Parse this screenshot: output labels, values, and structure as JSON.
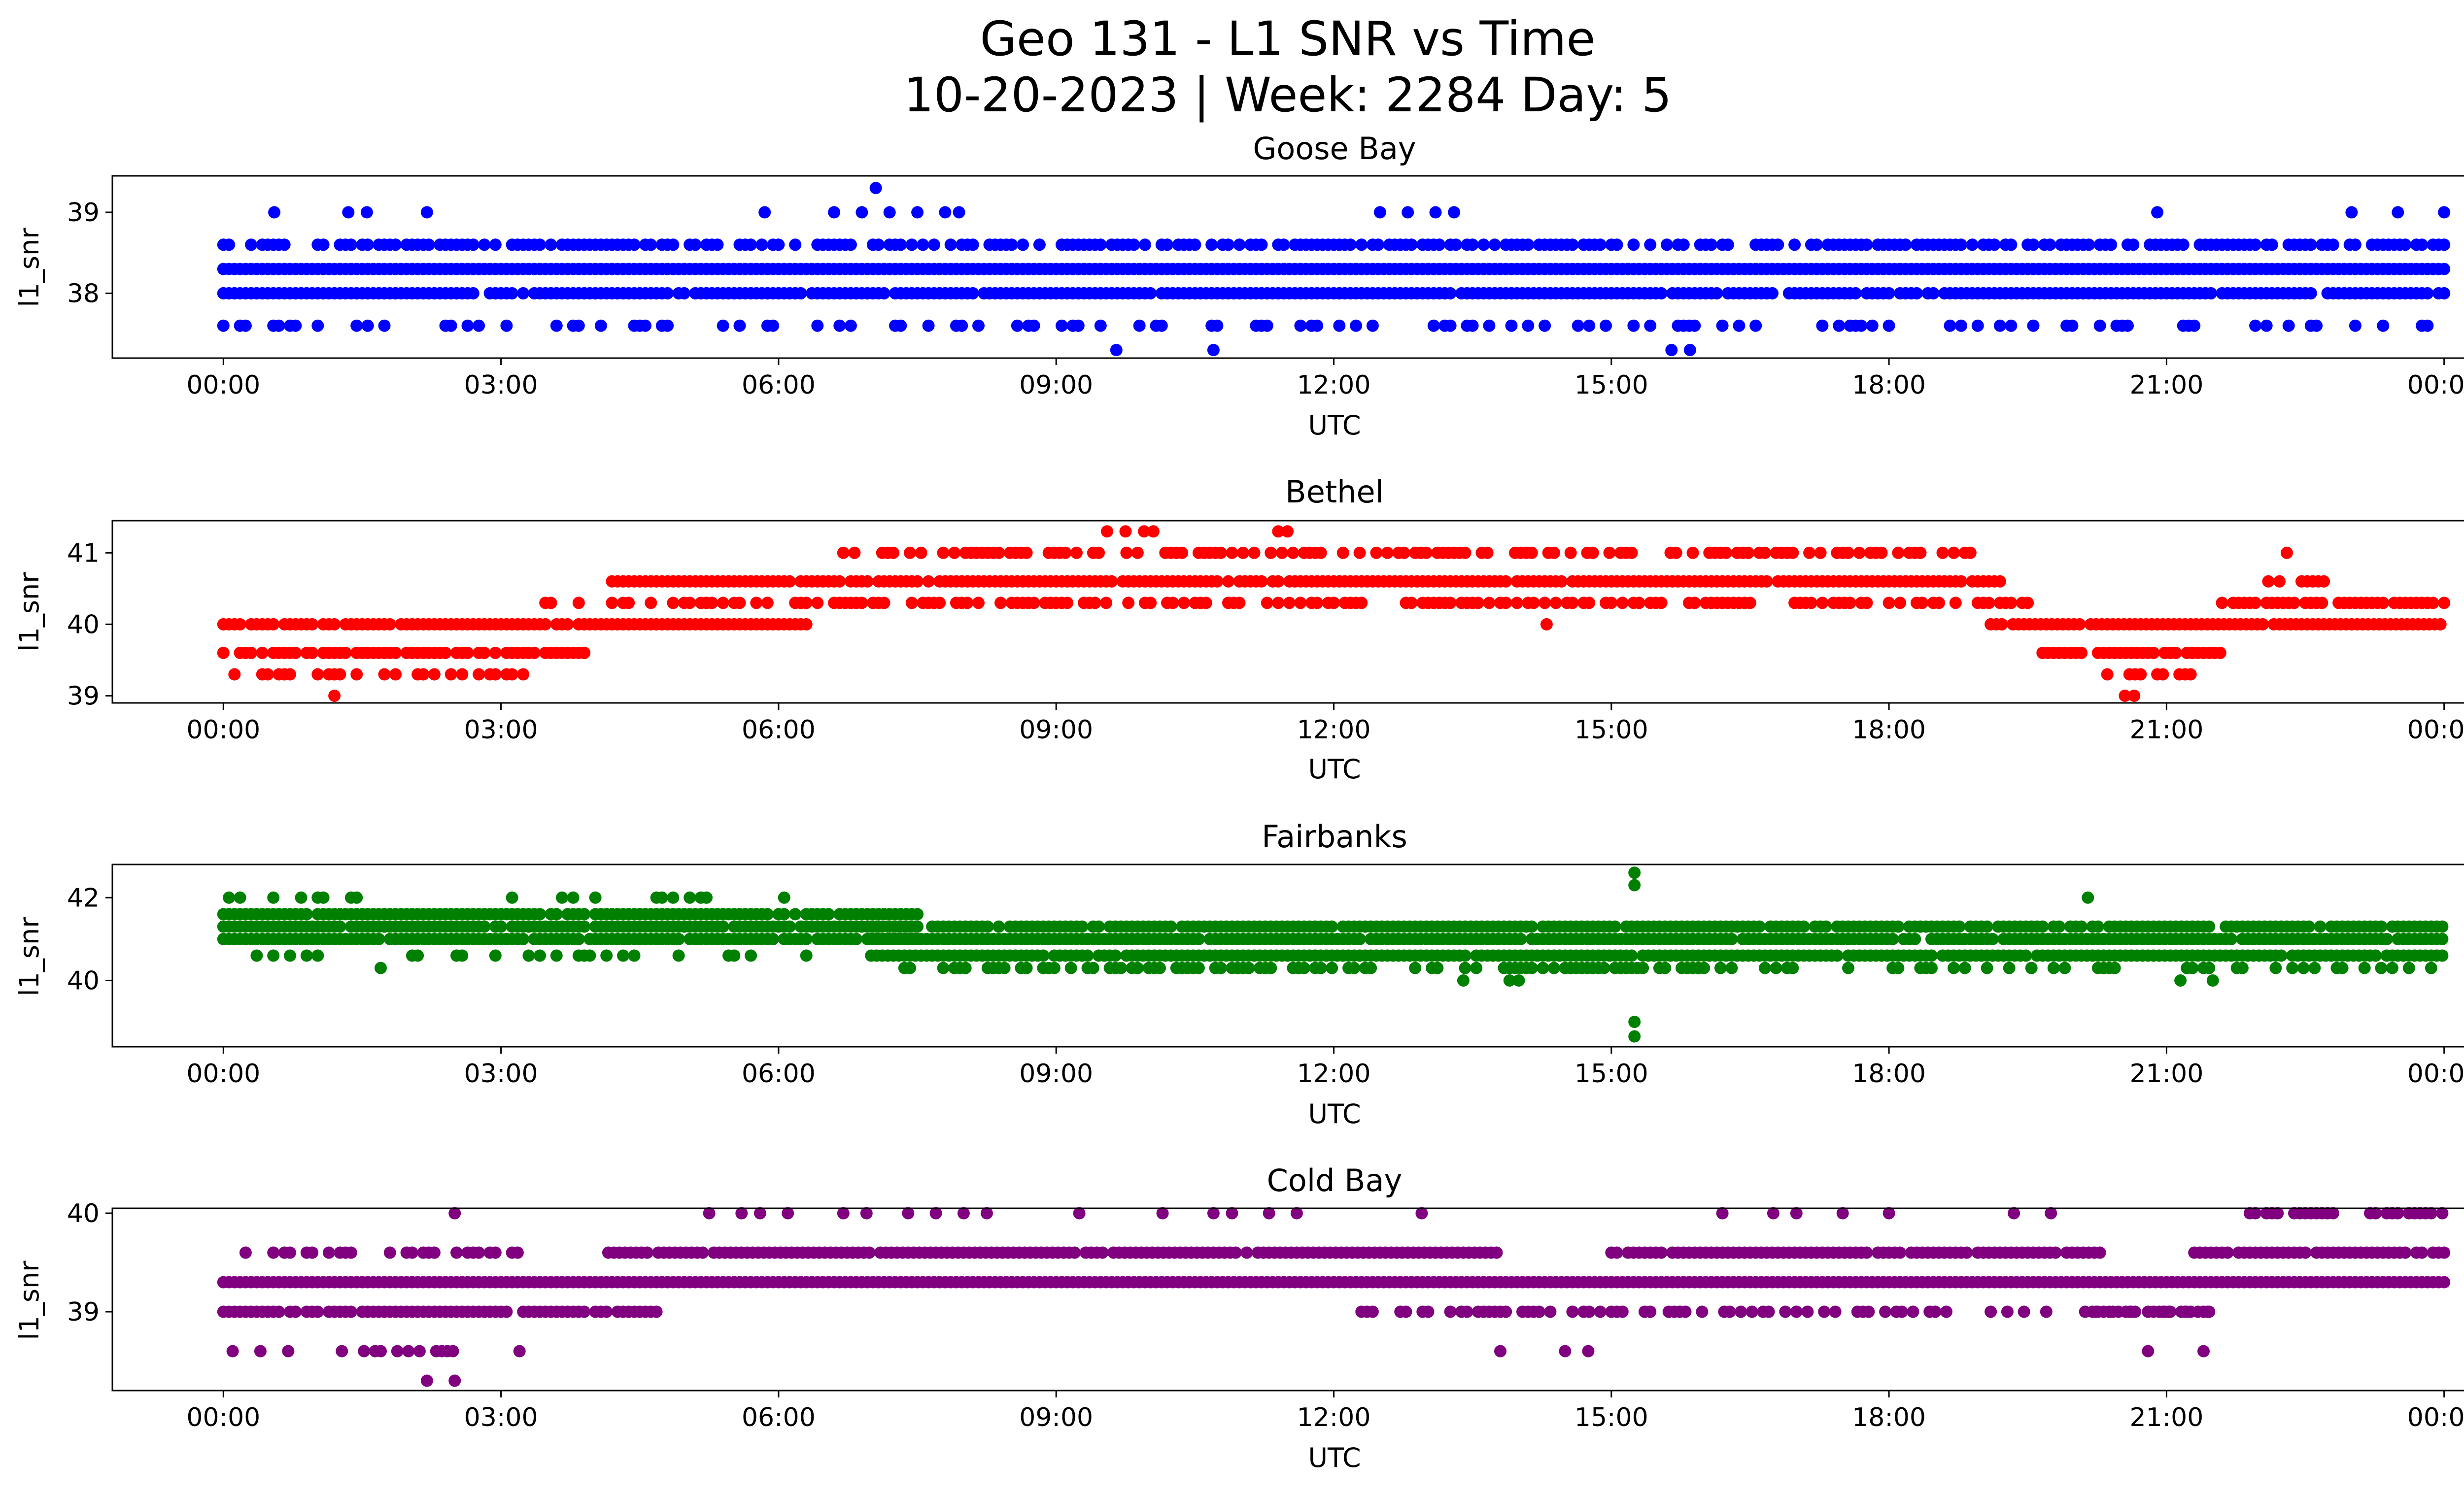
{
  "figure": {
    "title_line1": "Geo 131 - L1 SNR vs Time",
    "title_line2": "10-20-2023 | Week: 2284 Day: 5"
  },
  "chart_data": [
    {
      "type": "scatter",
      "title": "Goose Bay",
      "xlabel": "UTC",
      "ylabel": "l1_snr",
      "color": "#0000ff",
      "xlim_hours": [
        -1.2,
        25.2
      ],
      "ylim": [
        37.2,
        39.45
      ],
      "yticks": [
        38,
        39
      ],
      "xtick_labels": [
        "00:00",
        "03:00",
        "06:00",
        "09:00",
        "12:00",
        "15:00",
        "18:00",
        "21:00",
        "00:00"
      ],
      "bands": [
        {
          "y": 38.3,
          "coverage": 1.0,
          "from": 0,
          "to": 24
        },
        {
          "y": 38.0,
          "coverage": 0.95,
          "from": 0,
          "to": 24
        },
        {
          "y": 38.6,
          "coverage": 0.7,
          "from": 0,
          "to": 24
        },
        {
          "y": 37.6,
          "coverage": 0.25,
          "from": 0,
          "to": 24
        }
      ],
      "points": [
        {
          "x": 0.55,
          "y": 39
        },
        {
          "x": 1.35,
          "y": 39
        },
        {
          "x": 1.55,
          "y": 39
        },
        {
          "x": 2.2,
          "y": 39
        },
        {
          "x": 5.85,
          "y": 39
        },
        {
          "x": 6.6,
          "y": 39
        },
        {
          "x": 6.9,
          "y": 39
        },
        {
          "x": 7.05,
          "y": 39.3
        },
        {
          "x": 7.2,
          "y": 39
        },
        {
          "x": 7.5,
          "y": 39
        },
        {
          "x": 7.8,
          "y": 39
        },
        {
          "x": 7.95,
          "y": 39
        },
        {
          "x": 12.5,
          "y": 39
        },
        {
          "x": 12.8,
          "y": 39
        },
        {
          "x": 13.1,
          "y": 39
        },
        {
          "x": 13.3,
          "y": 39
        },
        {
          "x": 20.9,
          "y": 39
        },
        {
          "x": 23.0,
          "y": 39
        },
        {
          "x": 23.5,
          "y": 39
        },
        {
          "x": 24.0,
          "y": 39
        },
        {
          "x": 9.65,
          "y": 37.3
        },
        {
          "x": 10.7,
          "y": 37.3
        },
        {
          "x": 15.65,
          "y": 37.3
        },
        {
          "x": 15.85,
          "y": 37.3
        }
      ]
    },
    {
      "type": "scatter",
      "title": "Bethel",
      "xlabel": "UTC",
      "ylabel": "l1_snr",
      "color": "#ff0000",
      "xlim_hours": [
        -1.2,
        25.2
      ],
      "ylim": [
        38.9,
        41.45
      ],
      "yticks": [
        39,
        40,
        41
      ],
      "xtick_labels": [
        "00:00",
        "03:00",
        "06:00",
        "09:00",
        "12:00",
        "15:00",
        "18:00",
        "21:00",
        "00:00"
      ],
      "bands": [
        {
          "y": 40.0,
          "coverage": 0.9,
          "from": 0,
          "to": 6.3
        },
        {
          "y": 39.6,
          "coverage": 0.85,
          "from": 0,
          "to": 4.0
        },
        {
          "y": 39.3,
          "coverage": 0.45,
          "from": 0,
          "to": 3.3
        },
        {
          "y": 40.3,
          "coverage": 0.45,
          "from": 3.3,
          "to": 4.2
        },
        {
          "y": 40.6,
          "coverage": 0.95,
          "from": 4.2,
          "to": 19.2
        },
        {
          "y": 40.3,
          "coverage": 0.6,
          "from": 4.2,
          "to": 19.5
        },
        {
          "y": 41.0,
          "coverage": 0.55,
          "from": 6.7,
          "to": 18.9
        },
        {
          "y": 40.0,
          "coverage": 0.95,
          "from": 19.1,
          "to": 24
        },
        {
          "y": 39.6,
          "coverage": 0.8,
          "from": 19.6,
          "to": 21.6
        },
        {
          "y": 39.3,
          "coverage": 0.6,
          "from": 20.3,
          "to": 21.3
        },
        {
          "y": 40.3,
          "coverage": 0.85,
          "from": 21.6,
          "to": 24
        },
        {
          "y": 40.6,
          "coverage": 0.4,
          "from": 21.8,
          "to": 22.8
        }
      ],
      "points": [
        {
          "x": 1.2,
          "y": 39
        },
        {
          "x": 20.55,
          "y": 39
        },
        {
          "x": 20.65,
          "y": 39
        },
        {
          "x": 9.55,
          "y": 41.3
        },
        {
          "x": 9.75,
          "y": 41.3
        },
        {
          "x": 9.95,
          "y": 41.3
        },
        {
          "x": 10.05,
          "y": 41.3
        },
        {
          "x": 11.4,
          "y": 41.3
        },
        {
          "x": 11.5,
          "y": 41.3
        },
        {
          "x": 22.3,
          "y": 41.0
        },
        {
          "x": 14.3,
          "y": 40.0
        },
        {
          "x": 3.9,
          "y": 39.6
        }
      ]
    },
    {
      "type": "scatter",
      "title": "Fairbanks",
      "xlabel": "UTC",
      "ylabel": "l1_snr",
      "color": "#008000",
      "xlim_hours": [
        -1.2,
        25.2
      ],
      "ylim": [
        38.4,
        42.8
      ],
      "yticks": [
        40,
        42
      ],
      "xtick_labels": [
        "00:00",
        "03:00",
        "06:00",
        "09:00",
        "12:00",
        "15:00",
        "18:00",
        "21:00",
        "00:00"
      ],
      "bands": [
        {
          "y": 41.6,
          "coverage": 0.95,
          "from": 0,
          "to": 7.5
        },
        {
          "y": 41.3,
          "coverage": 0.95,
          "from": 0,
          "to": 7.5
        },
        {
          "y": 41.0,
          "coverage": 0.95,
          "from": 0,
          "to": 7.5
        },
        {
          "y": 41.3,
          "coverage": 0.9,
          "from": 7.0,
          "to": 24
        },
        {
          "y": 41.0,
          "coverage": 0.95,
          "from": 7.0,
          "to": 24
        },
        {
          "y": 40.6,
          "coverage": 0.95,
          "from": 7.0,
          "to": 24
        },
        {
          "y": 40.3,
          "coverage": 0.6,
          "from": 7.3,
          "to": 16.0
        },
        {
          "y": 40.3,
          "coverage": 0.3,
          "from": 16.0,
          "to": 24
        },
        {
          "y": 42.0,
          "coverage": 0.15,
          "from": 0,
          "to": 6.3
        },
        {
          "y": 40.6,
          "coverage": 0.2,
          "from": 0,
          "to": 7.0
        }
      ],
      "points": [
        {
          "x": 15.25,
          "y": 42.6
        },
        {
          "x": 15.25,
          "y": 42.3
        },
        {
          "x": 15.25,
          "y": 39.0
        },
        {
          "x": 15.25,
          "y": 38.65
        },
        {
          "x": 13.4,
          "y": 40.0
        },
        {
          "x": 13.9,
          "y": 40.0
        },
        {
          "x": 14.0,
          "y": 40.0
        },
        {
          "x": 21.15,
          "y": 40.0
        },
        {
          "x": 21.5,
          "y": 40.0
        },
        {
          "x": 20.15,
          "y": 42.0
        },
        {
          "x": 1.7,
          "y": 40.3
        }
      ]
    },
    {
      "type": "scatter",
      "title": "Cold Bay",
      "xlabel": "UTC",
      "ylabel": "l1_snr",
      "color": "#800080",
      "xlim_hours": [
        -1.2,
        25.2
      ],
      "ylim": [
        38.2,
        40.05
      ],
      "yticks": [
        39,
        40
      ],
      "xtick_labels": [
        "00:00",
        "03:00",
        "06:00",
        "09:00",
        "12:00",
        "15:00",
        "18:00",
        "21:00",
        "00:00"
      ],
      "bands": [
        {
          "y": 39.3,
          "coverage": 1.0,
          "from": 0,
          "to": 24
        },
        {
          "y": 39.0,
          "coverage": 0.95,
          "from": 0,
          "to": 4.7
        },
        {
          "y": 39.6,
          "coverage": 0.35,
          "from": 0,
          "to": 3.3
        },
        {
          "y": 38.6,
          "coverage": 0.6,
          "from": 1.1,
          "to": 2.5
        },
        {
          "y": 39.6,
          "coverage": 0.95,
          "from": 4.1,
          "to": 13.8
        },
        {
          "y": 39.0,
          "coverage": 0.55,
          "from": 12.3,
          "to": 15.5
        },
        {
          "y": 39.6,
          "coverage": 0.95,
          "from": 15.0,
          "to": 20.3
        },
        {
          "y": 39.0,
          "coverage": 0.35,
          "from": 15.5,
          "to": 21.5
        },
        {
          "y": 39.0,
          "coverage": 0.75,
          "from": 20.2,
          "to": 21.5
        },
        {
          "y": 39.6,
          "coverage": 0.9,
          "from": 21.3,
          "to": 24
        },
        {
          "y": 40.0,
          "coverage": 0.8,
          "from": 21.9,
          "to": 22.8
        },
        {
          "y": 40.0,
          "coverage": 0.8,
          "from": 23.2,
          "to": 24
        }
      ],
      "points": [
        {
          "x": 2.5,
          "y": 40.0
        },
        {
          "x": 5.25,
          "y": 40.0
        },
        {
          "x": 5.6,
          "y": 40.0
        },
        {
          "x": 5.8,
          "y": 40.0
        },
        {
          "x": 6.1,
          "y": 40.0
        },
        {
          "x": 6.7,
          "y": 40.0
        },
        {
          "x": 6.95,
          "y": 40.0
        },
        {
          "x": 7.4,
          "y": 40.0
        },
        {
          "x": 7.7,
          "y": 40.0
        },
        {
          "x": 8.0,
          "y": 40.0
        },
        {
          "x": 8.25,
          "y": 40.0
        },
        {
          "x": 9.25,
          "y": 40.0
        },
        {
          "x": 10.15,
          "y": 40.0
        },
        {
          "x": 10.7,
          "y": 40.0
        },
        {
          "x": 10.9,
          "y": 40.0
        },
        {
          "x": 11.3,
          "y": 40.0
        },
        {
          "x": 11.6,
          "y": 40.0
        },
        {
          "x": 12.95,
          "y": 40.0
        },
        {
          "x": 16.2,
          "y": 40.0
        },
        {
          "x": 16.75,
          "y": 40.0
        },
        {
          "x": 17.0,
          "y": 40.0
        },
        {
          "x": 17.5,
          "y": 40.0
        },
        {
          "x": 18.0,
          "y": 40.0
        },
        {
          "x": 19.35,
          "y": 40.0
        },
        {
          "x": 19.75,
          "y": 40.0
        },
        {
          "x": 2.2,
          "y": 38.3
        },
        {
          "x": 2.5,
          "y": 38.3
        },
        {
          "x": 13.8,
          "y": 38.6
        },
        {
          "x": 14.5,
          "y": 38.6
        },
        {
          "x": 14.75,
          "y": 38.6
        },
        {
          "x": 20.8,
          "y": 38.6
        },
        {
          "x": 21.4,
          "y": 38.6
        },
        {
          "x": 0.1,
          "y": 38.6
        },
        {
          "x": 0.4,
          "y": 38.6
        },
        {
          "x": 0.7,
          "y": 38.6
        },
        {
          "x": 3.2,
          "y": 38.6
        }
      ]
    }
  ]
}
